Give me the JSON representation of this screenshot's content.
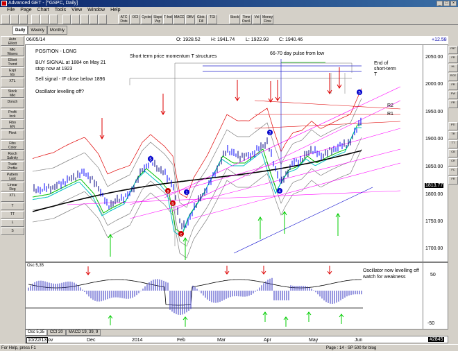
{
  "window": {
    "title": "Advanced GET - [^GSPC, Daily]"
  },
  "menu": [
    "File",
    "Page",
    "Chart",
    "Tools",
    "View",
    "Window",
    "Help"
  ],
  "toolbar": [
    "ATC\nDots",
    "OCI",
    "Cycles",
    "Slope\nVsp",
    "T-Ind",
    "MACD",
    "OBV",
    "Glob.\nFill",
    "TGI",
    "Stock",
    "Time\nOscil.",
    "Vol",
    "Money\nFlow"
  ],
  "tabs": [
    "Daily",
    "Weekly",
    "Monthly"
  ],
  "active_tab": "Daily",
  "sidebar": [
    "Auto\nElliott",
    "Mkt\nWaves",
    "Elliott\nTrend",
    "Expl\nIdx",
    "XTL",
    "Stock\nMkt",
    "Donch",
    "Profit\nlock",
    "Fibo\nEN",
    "Pivot",
    "Fibs\nColor",
    "Rsrch\nSalinity",
    "Trade\nProfile",
    "Pattern\nLast",
    "Linear\nReg",
    "XTL",
    "T",
    "TT",
    "L",
    "S"
  ],
  "rightbar": [
    "FBT",
    "FR",
    "HL",
    "RCE",
    "FR",
    "FW",
    "FR",
    "PTI",
    "TR",
    "TT",
    "CB",
    "CR",
    "FC",
    "FR"
  ],
  "header": {
    "date": "06/05/14",
    "open": "O: 1928.52",
    "high": "H: 1941.74",
    "low": "L: 1922.93",
    "close": "C: 1940.46",
    "change": "+12.58"
  },
  "annotations": {
    "position": "POSITION - LONG",
    "buy_signal_1": "BUY SIGNAL at 1884 on May 21",
    "buy_signal_2": "stop now at 1923",
    "sell_signal": "Sell signal - IF close below 1896",
    "oscillator_q": "Oscillator levelling off?",
    "short_term": "Short term price momentum T structures",
    "pulse": "66-70 day pulse from low",
    "end_short_1": "End of",
    "end_short_2": "short-term",
    "end_short_3": "T",
    "r2": "R2",
    "r1": "R1",
    "osc_note_1": "Oscillator now levelling off",
    "osc_note_2": "watch for weakness"
  },
  "price_axis": {
    "labels": [
      "2050.00",
      "2000.00",
      "1950.00",
      "1900.00",
      "1850.00",
      "1800.00",
      "1750.00",
      "1700.00"
    ],
    "current": "1813.77"
  },
  "osc": {
    "title": "Osc 5,35",
    "labels": [
      "50",
      "-50"
    ]
  },
  "bottom_tabs": [
    "Osc 5,35",
    "CCI 20",
    "MACD 19, 39, 9"
  ],
  "time_axis": {
    "start": "10/22/13",
    "labels": [
      "ov",
      "Dec",
      "2014",
      "Feb",
      "Mar",
      "Apr",
      "May",
      "Jun"
    ],
    "bar_count": "#2845"
  },
  "status": {
    "help": "For Help, press F1",
    "page": "Page : 14 - SP 500 for blog"
  },
  "colors": {
    "chart_bg": "#ffffff",
    "sma_black": "#000000",
    "band_red": "#e00000",
    "band_gray": "#808080",
    "channel_magenta": "#ff00ff",
    "up_arrow": "#00cc00",
    "down_arrow": "#dd0000",
    "osc_bars": "#3030c0"
  },
  "wave_labels": [
    "iii",
    "3",
    "a",
    "4",
    "iv",
    "5",
    "b",
    "c",
    "1",
    "2",
    "3",
    "4",
    "5",
    "a",
    "b",
    "c"
  ]
}
